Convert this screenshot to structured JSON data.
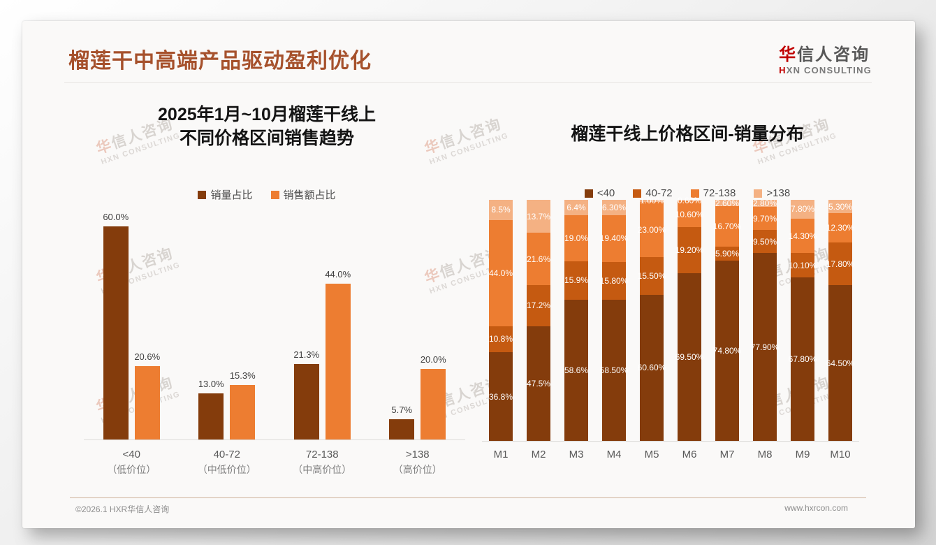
{
  "header": {
    "title": "榴莲干中高端产品驱动盈利优化",
    "logo": {
      "cn_first": "华",
      "cn_rest": "信人咨询",
      "en_first": "H",
      "en_rest": "XN CONSULTING"
    }
  },
  "watermark": {
    "line1_first": "华",
    "line1_rest": "信人咨询",
    "line2": "HXN CONSULTING"
  },
  "footer": {
    "left": "©2026.1 HXR华信人咨询",
    "right": "www.hxrcon.com"
  },
  "colors": {
    "title": "#A6512C",
    "logo_red": "#C00000",
    "accent_dark": "#843C0C",
    "accent_mid": "#C55A11",
    "accent_orange": "#ED7D31",
    "accent_light": "#F4B183"
  },
  "chart_data": [
    {
      "type": "bar",
      "title_line1": "2025年1月~10月榴莲干线上",
      "title_line2": "不同价格区间销售趋势",
      "categories": [
        "<40",
        "40-72",
        "72-138",
        ">138"
      ],
      "category_sublabels": [
        "（低价位）",
        "（中低价位）",
        "（中高价位）",
        "（高价位）"
      ],
      "series": [
        {
          "name": "销量占比",
          "color_key": "accent_dark",
          "values": [
            60.0,
            13.0,
            21.3,
            5.7
          ],
          "labels": [
            "60.0%",
            "13.0%",
            "21.3%",
            "5.7%"
          ]
        },
        {
          "name": "销售额占比",
          "color_key": "accent_orange",
          "values": [
            20.6,
            15.3,
            44.0,
            20.0
          ],
          "labels": [
            "20.6%",
            "15.3%",
            "44.0%",
            "20.0%"
          ]
        }
      ],
      "ylim": [
        0,
        66
      ],
      "grid": false,
      "legend_position": "top"
    },
    {
      "type": "stacked-bar",
      "title": "榴莲干线上价格区间-销量分布",
      "categories": [
        "M1",
        "M2",
        "M3",
        "M4",
        "M5",
        "M6",
        "M7",
        "M8",
        "M9",
        "M10"
      ],
      "series": [
        {
          "name": "<40",
          "color_key": "accent_dark",
          "values": [
            36.8,
            47.5,
            58.6,
            58.5,
            60.6,
            69.5,
            74.8,
            77.9,
            67.8,
            64.5
          ],
          "labels": [
            "36.8%",
            "47.5%",
            "58.6%",
            "58.50%",
            "60.60%",
            "69.50%",
            "74.80%",
            "77.90%",
            "67.80%",
            "64.50%"
          ]
        },
        {
          "name": "40-72",
          "color_key": "accent_mid",
          "values": [
            10.8,
            17.2,
            15.9,
            15.8,
            15.5,
            19.2,
            5.9,
            9.5,
            10.1,
            17.8
          ],
          "labels": [
            "10.8%",
            "17.2%",
            "15.9%",
            "15.80%",
            "15.50%",
            "19.20%",
            "5.90%",
            "9.50%",
            "10.10%",
            "17.80%"
          ]
        },
        {
          "name": "72-138",
          "color_key": "accent_orange",
          "values": [
            44.0,
            21.6,
            19.0,
            19.4,
            23.0,
            10.6,
            16.7,
            9.7,
            14.3,
            12.3
          ],
          "labels": [
            "44.0%",
            "21.6%",
            "19.0%",
            "19.40%",
            "23.00%",
            "10.60%",
            "16.70%",
            "9.70%",
            "14.30%",
            "12.30%"
          ]
        },
        {
          "name": ">138",
          "color_key": "accent_light",
          "values": [
            8.5,
            13.7,
            6.4,
            6.3,
            1.0,
            0.6,
            2.6,
            2.8,
            7.8,
            5.3
          ],
          "labels": [
            "8.5%",
            "13.7%",
            "6.4%",
            "6.30%",
            "1.00%",
            "0.60%",
            "2.60%",
            "2.80%",
            "7.80%",
            "5.30%"
          ]
        }
      ],
      "ylim": [
        0,
        100
      ],
      "grid": false,
      "legend_position": "top"
    }
  ]
}
